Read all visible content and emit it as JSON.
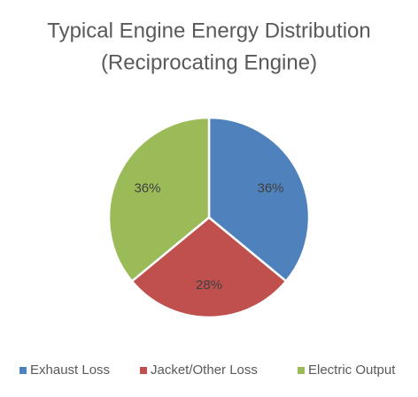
{
  "chart_data": {
    "type": "pie",
    "title": [
      "Typical Engine Energy Distribution",
      "(Reciprocating Engine)"
    ],
    "categories": [
      "Exhaust Loss",
      "Jacket/Other Loss",
      "Electric Output"
    ],
    "values": [
      36,
      28,
      36
    ],
    "value_labels": [
      "36%",
      "28%",
      "36%"
    ],
    "colors": [
      "#4f81bd",
      "#c0504d",
      "#9bbb59"
    ],
    "legend": "bottom"
  }
}
